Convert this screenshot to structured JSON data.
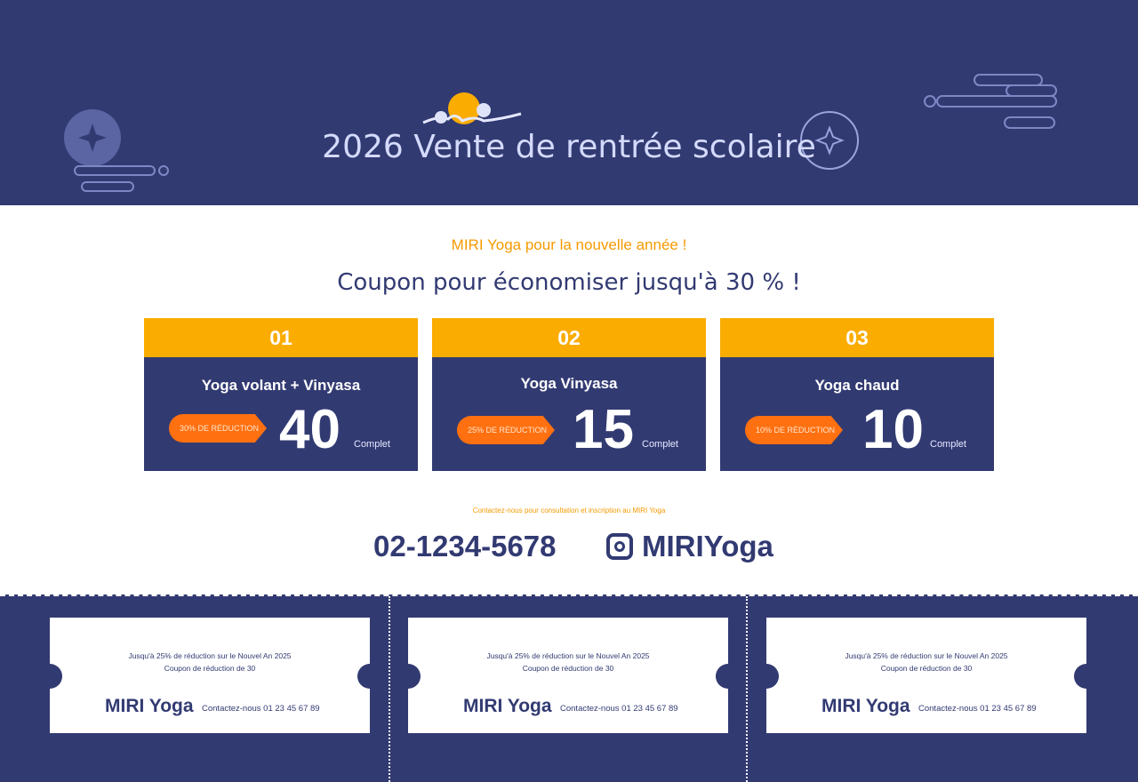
{
  "hero": {
    "title": "2026 Vente de rentrée scolaire"
  },
  "intro": {
    "subtitle": "MIRI Yoga pour la nouvelle année !",
    "headline": "Coupon pour économiser jusqu'à 30 % !"
  },
  "cards": [
    {
      "number": "01",
      "name": "Yoga volant + Vinyasa",
      "badge": "30% DE RÉDUCTION",
      "count": "40",
      "status": "Complet"
    },
    {
      "number": "02",
      "name": "Yoga Vinyasa",
      "badge": "25% DE RÉDUCTION",
      "count": "15",
      "status": "Complet"
    },
    {
      "number": "03",
      "name": "Yoga chaud",
      "badge": "10% DE RÉDUCTION",
      "count": "10",
      "status": "Complet"
    }
  ],
  "contact": {
    "note": "Contactez-nous pour consultation et inscription au MIRI Yoga",
    "phone": "02-1234-5678",
    "instagram": "MIRIYoga",
    "icon": "instagram-icon"
  },
  "tickets": [
    {
      "line1": "Jusqu'à 25% de réduction sur le Nouvel An 2025",
      "line2": "Coupon de réduction de 30",
      "brand": "MIRI Yoga",
      "contact": "Contactez-nous 01 23 45 67 89"
    },
    {
      "line1": "Jusqu'à 25% de réduction sur le Nouvel An 2025",
      "line2": "Coupon de réduction de 30",
      "brand": "MIRI Yoga",
      "contact": "Contactez-nous 01 23 45 67 89"
    },
    {
      "line1": "Jusqu'à 25% de réduction sur le Nouvel An 2025",
      "line2": "Coupon de réduction de 30",
      "brand": "MIRI Yoga",
      "contact": "Contactez-nous 01 23 45 67 89"
    }
  ],
  "colors": {
    "navy": "#323a72",
    "yellow": "#fbac00",
    "orange": "#ff7010"
  }
}
